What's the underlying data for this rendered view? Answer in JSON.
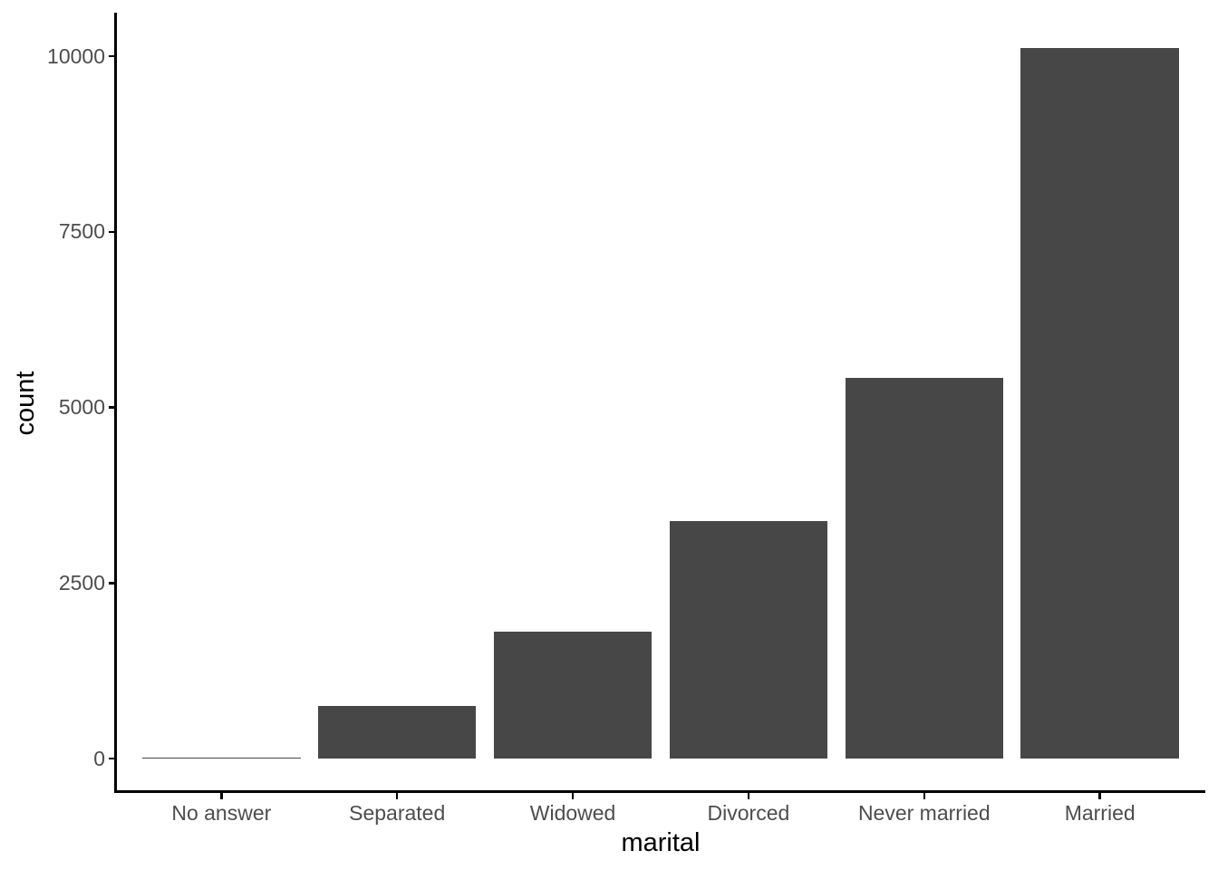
{
  "chart_data": {
    "type": "bar",
    "title": "",
    "xlabel": "marital",
    "ylabel": "count",
    "categories": [
      "No answer",
      "Separated",
      "Widowed",
      "Divorced",
      "Never married",
      "Married"
    ],
    "values": [
      17,
      743,
      1807,
      3383,
      5416,
      10117
    ],
    "yticks": [
      0,
      2500,
      5000,
      7500,
      10000
    ],
    "ylim": [
      0,
      10600
    ],
    "grid": false,
    "legend": false,
    "bar_color": "#474747",
    "axis_text_color": "#4D4D4D",
    "axis_line_color": "#000000",
    "background": "#FFFFFF"
  }
}
